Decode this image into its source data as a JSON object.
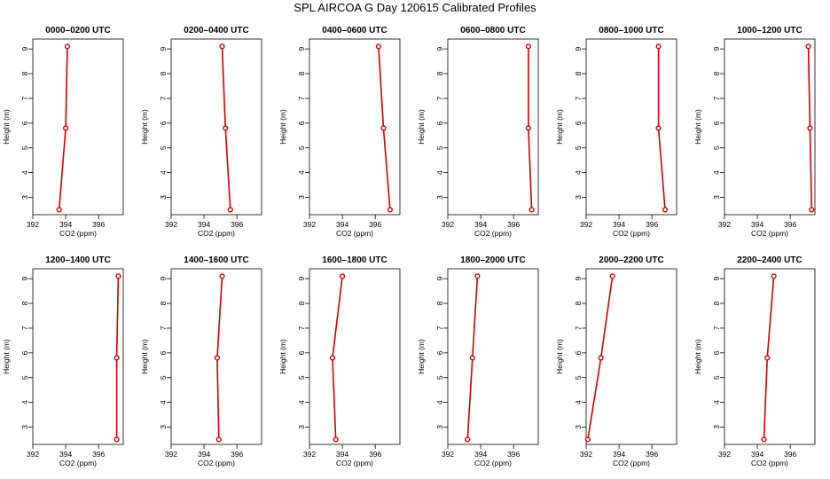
{
  "figure": {
    "title": "SPL AIRCOA G  Day 120615  Calibrated Profiles",
    "series_color": "#cc0000"
  },
  "chart_data": [
    {
      "type": "line",
      "title": "0000–0200 UTC",
      "xlabel": "CO2 (ppm)",
      "ylabel": "Height (m)",
      "xlim": [
        392,
        397.5
      ],
      "ylim": [
        2.3,
        9.4
      ],
      "xticks": [
        "392",
        "394",
        "396"
      ],
      "yticks": [
        "3",
        "4",
        "5",
        "6",
        "7",
        "8",
        "9"
      ],
      "grid": false,
      "points": [
        {
          "x": 393.6,
          "y": 2.5
        },
        {
          "x": 394.0,
          "y": 5.8
        },
        {
          "x": 394.1,
          "y": 9.1
        }
      ]
    },
    {
      "type": "line",
      "title": "0200–0400 UTC",
      "xlabel": "CO2 (ppm)",
      "ylabel": "Height (m)",
      "xlim": [
        392,
        397.5
      ],
      "ylim": [
        2.3,
        9.4
      ],
      "xticks": [
        "392",
        "394",
        "396"
      ],
      "yticks": [
        "3",
        "4",
        "5",
        "6",
        "7",
        "8",
        "9"
      ],
      "grid": false,
      "points": [
        {
          "x": 395.6,
          "y": 2.5
        },
        {
          "x": 395.3,
          "y": 5.8
        },
        {
          "x": 395.1,
          "y": 9.1
        }
      ]
    },
    {
      "type": "line",
      "title": "0400–0600 UTC",
      "xlabel": "CO2 (ppm)",
      "ylabel": "Height (m)",
      "xlim": [
        392,
        397.5
      ],
      "ylim": [
        2.3,
        9.4
      ],
      "xticks": [
        "392",
        "394",
        "396"
      ],
      "yticks": [
        "3",
        "4",
        "5",
        "6",
        "7",
        "8",
        "9"
      ],
      "grid": false,
      "points": [
        {
          "x": 396.9,
          "y": 2.5
        },
        {
          "x": 396.5,
          "y": 5.8
        },
        {
          "x": 396.2,
          "y": 9.1
        }
      ]
    },
    {
      "type": "line",
      "title": "0600–0800 UTC",
      "xlabel": "CO2 (ppm)",
      "ylabel": "Height (m)",
      "xlim": [
        392,
        397.5
      ],
      "ylim": [
        2.3,
        9.4
      ],
      "xticks": [
        "392",
        "394",
        "396"
      ],
      "yticks": [
        "3",
        "4",
        "5",
        "6",
        "7",
        "8",
        "9"
      ],
      "grid": false,
      "points": [
        {
          "x": 397.1,
          "y": 2.5
        },
        {
          "x": 396.9,
          "y": 5.8
        },
        {
          "x": 396.9,
          "y": 9.1
        }
      ]
    },
    {
      "type": "line",
      "title": "0800–1000 UTC",
      "xlabel": "CO2 (ppm)",
      "ylabel": "Height (m)",
      "xlim": [
        392,
        397.5
      ],
      "ylim": [
        2.3,
        9.4
      ],
      "xticks": [
        "392",
        "394",
        "396"
      ],
      "yticks": [
        "3",
        "4",
        "5",
        "6",
        "7",
        "8",
        "9"
      ],
      "grid": false,
      "points": [
        {
          "x": 396.8,
          "y": 2.5
        },
        {
          "x": 396.4,
          "y": 5.8
        },
        {
          "x": 396.4,
          "y": 9.1
        }
      ]
    },
    {
      "type": "line",
      "title": "1000–1200 UTC",
      "xlabel": "CO2 (ppm)",
      "ylabel": "Height (m)",
      "xlim": [
        392,
        397.5
      ],
      "ylim": [
        2.3,
        9.4
      ],
      "xticks": [
        "392",
        "394",
        "396"
      ],
      "yticks": [
        "3",
        "4",
        "5",
        "6",
        "7",
        "8",
        "9"
      ],
      "grid": false,
      "points": [
        {
          "x": 397.3,
          "y": 2.5
        },
        {
          "x": 397.2,
          "y": 5.8
        },
        {
          "x": 397.1,
          "y": 9.1
        }
      ]
    },
    {
      "type": "line",
      "title": "1200–1400 UTC",
      "xlabel": "CO2 (ppm)",
      "ylabel": "Height (m)",
      "xlim": [
        392,
        397.5
      ],
      "ylim": [
        2.3,
        9.4
      ],
      "xticks": [
        "392",
        "394",
        "396"
      ],
      "yticks": [
        "3",
        "4",
        "5",
        "6",
        "7",
        "8",
        "9"
      ],
      "grid": false,
      "points": [
        {
          "x": 397.1,
          "y": 2.5
        },
        {
          "x": 397.1,
          "y": 5.8
        },
        {
          "x": 397.2,
          "y": 9.1
        }
      ]
    },
    {
      "type": "line",
      "title": "1400–1600 UTC",
      "xlabel": "CO2 (ppm)",
      "ylabel": "Height (m)",
      "xlim": [
        392,
        397.5
      ],
      "ylim": [
        2.3,
        9.4
      ],
      "xticks": [
        "392",
        "394",
        "396"
      ],
      "yticks": [
        "3",
        "4",
        "5",
        "6",
        "7",
        "8",
        "9"
      ],
      "grid": false,
      "points": [
        {
          "x": 394.9,
          "y": 2.5
        },
        {
          "x": 394.8,
          "y": 5.8
        },
        {
          "x": 395.1,
          "y": 9.1
        }
      ]
    },
    {
      "type": "line",
      "title": "1600–1800 UTC",
      "xlabel": "CO2 (ppm)",
      "ylabel": "Height (m)",
      "xlim": [
        392,
        397.5
      ],
      "ylim": [
        2.3,
        9.4
      ],
      "xticks": [
        "392",
        "394",
        "396"
      ],
      "yticks": [
        "3",
        "4",
        "5",
        "6",
        "7",
        "8",
        "9"
      ],
      "grid": false,
      "points": [
        {
          "x": 393.6,
          "y": 2.5
        },
        {
          "x": 393.4,
          "y": 5.8
        },
        {
          "x": 394.0,
          "y": 9.1
        }
      ]
    },
    {
      "type": "line",
      "title": "1800–2000 UTC",
      "xlabel": "CO2 (ppm)",
      "ylabel": "Height (m)",
      "xlim": [
        392,
        397.5
      ],
      "ylim": [
        2.3,
        9.4
      ],
      "xticks": [
        "392",
        "394",
        "396"
      ],
      "yticks": [
        "3",
        "4",
        "5",
        "6",
        "7",
        "8",
        "9"
      ],
      "grid": false,
      "points": [
        {
          "x": 393.2,
          "y": 2.5
        },
        {
          "x": 393.5,
          "y": 5.8
        },
        {
          "x": 393.8,
          "y": 9.1
        }
      ]
    },
    {
      "type": "line",
      "title": "2000–2200 UTC",
      "xlabel": "CO2 (ppm)",
      "ylabel": "Height (m)",
      "xlim": [
        392,
        397.5
      ],
      "ylim": [
        2.3,
        9.4
      ],
      "xticks": [
        "392",
        "394",
        "396"
      ],
      "yticks": [
        "3",
        "4",
        "5",
        "6",
        "7",
        "8",
        "9"
      ],
      "grid": false,
      "points": [
        {
          "x": 392.1,
          "y": 2.5
        },
        {
          "x": 392.9,
          "y": 5.8
        },
        {
          "x": 393.6,
          "y": 9.1
        }
      ]
    },
    {
      "type": "line",
      "title": "2200–2400 UTC",
      "xlabel": "CO2 (ppm)",
      "ylabel": "Height (m)",
      "xlim": [
        392,
        397.5
      ],
      "ylim": [
        2.3,
        9.4
      ],
      "xticks": [
        "392",
        "394",
        "396"
      ],
      "yticks": [
        "3",
        "4",
        "5",
        "6",
        "7",
        "8",
        "9"
      ],
      "grid": false,
      "points": [
        {
          "x": 394.4,
          "y": 2.5
        },
        {
          "x": 394.6,
          "y": 5.8
        },
        {
          "x": 395.0,
          "y": 9.1
        }
      ]
    }
  ]
}
